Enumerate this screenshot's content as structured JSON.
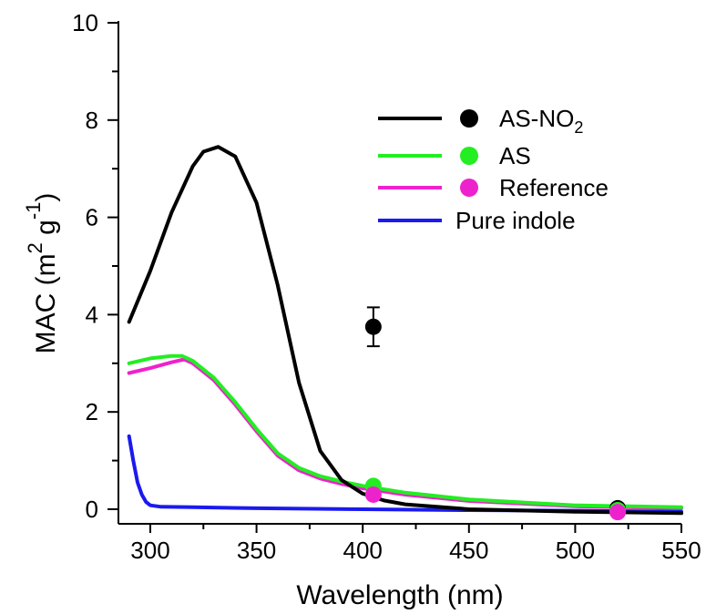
{
  "chart_data": {
    "type": "line",
    "xlabel": "Wavelength (nm)",
    "ylabel": {
      "prefix": "MAC (m",
      "sup1": "2",
      "mid": " g",
      "sup2": "-1",
      "suffix": ")"
    },
    "xlim": [
      285,
      550
    ],
    "ylim": [
      -0.3,
      10
    ],
    "xticks": [
      300,
      350,
      400,
      450,
      500,
      550
    ],
    "yticks": [
      0,
      2,
      4,
      6,
      8,
      10
    ],
    "grid": false,
    "legend_position": "top-right",
    "series": [
      {
        "name": "AS-NO",
        "name_sub": "2",
        "color": "#000000",
        "line": [
          [
            290,
            3.85
          ],
          [
            300,
            4.9
          ],
          [
            310,
            6.1
          ],
          [
            320,
            7.05
          ],
          [
            325,
            7.35
          ],
          [
            332,
            7.45
          ],
          [
            340,
            7.25
          ],
          [
            350,
            6.3
          ],
          [
            360,
            4.6
          ],
          [
            370,
            2.6
          ],
          [
            380,
            1.2
          ],
          [
            390,
            0.6
          ],
          [
            400,
            0.32
          ],
          [
            410,
            0.18
          ],
          [
            420,
            0.1
          ],
          [
            450,
            0.0
          ],
          [
            500,
            -0.05
          ],
          [
            550,
            -0.08
          ]
        ],
        "points": [
          {
            "x": 405,
            "y": 3.75,
            "err": 0.4
          },
          {
            "x": 520,
            "y": 0.02,
            "err": 0
          }
        ]
      },
      {
        "name": "AS",
        "color": "#22ee22",
        "line": [
          [
            290,
            3.0
          ],
          [
            300,
            3.1
          ],
          [
            310,
            3.15
          ],
          [
            315,
            3.15
          ],
          [
            320,
            3.05
          ],
          [
            330,
            2.7
          ],
          [
            340,
            2.2
          ],
          [
            350,
            1.65
          ],
          [
            360,
            1.15
          ],
          [
            370,
            0.85
          ],
          [
            380,
            0.68
          ],
          [
            390,
            0.57
          ],
          [
            400,
            0.48
          ],
          [
            420,
            0.34
          ],
          [
            450,
            0.2
          ],
          [
            500,
            0.08
          ],
          [
            550,
            0.04
          ]
        ],
        "points": [
          {
            "x": 405,
            "y": 0.48,
            "err": 0
          },
          {
            "x": 520,
            "y": -0.02,
            "err": 0
          }
        ]
      },
      {
        "name": "Reference",
        "color": "#ee22cc",
        "line": [
          [
            290,
            2.8
          ],
          [
            300,
            2.9
          ],
          [
            310,
            3.02
          ],
          [
            316,
            3.08
          ],
          [
            320,
            3.0
          ],
          [
            330,
            2.65
          ],
          [
            340,
            2.15
          ],
          [
            350,
            1.6
          ],
          [
            360,
            1.1
          ],
          [
            370,
            0.8
          ],
          [
            380,
            0.63
          ],
          [
            390,
            0.52
          ],
          [
            400,
            0.43
          ],
          [
            420,
            0.3
          ],
          [
            450,
            0.17
          ],
          [
            500,
            0.06
          ],
          [
            550,
            0.02
          ]
        ],
        "points": [
          {
            "x": 405,
            "y": 0.3,
            "err": 0
          },
          {
            "x": 520,
            "y": -0.06,
            "err": 0
          }
        ]
      },
      {
        "name": "Pure indole",
        "color": "#1a1aee",
        "line": [
          [
            290,
            1.5
          ],
          [
            292,
            1.0
          ],
          [
            294,
            0.55
          ],
          [
            296,
            0.3
          ],
          [
            298,
            0.15
          ],
          [
            300,
            0.08
          ],
          [
            305,
            0.05
          ],
          [
            320,
            0.04
          ],
          [
            350,
            0.02
          ],
          [
            400,
            0.0
          ],
          [
            450,
            -0.02
          ],
          [
            500,
            -0.03
          ],
          [
            550,
            -0.05
          ]
        ],
        "points": []
      }
    ]
  }
}
